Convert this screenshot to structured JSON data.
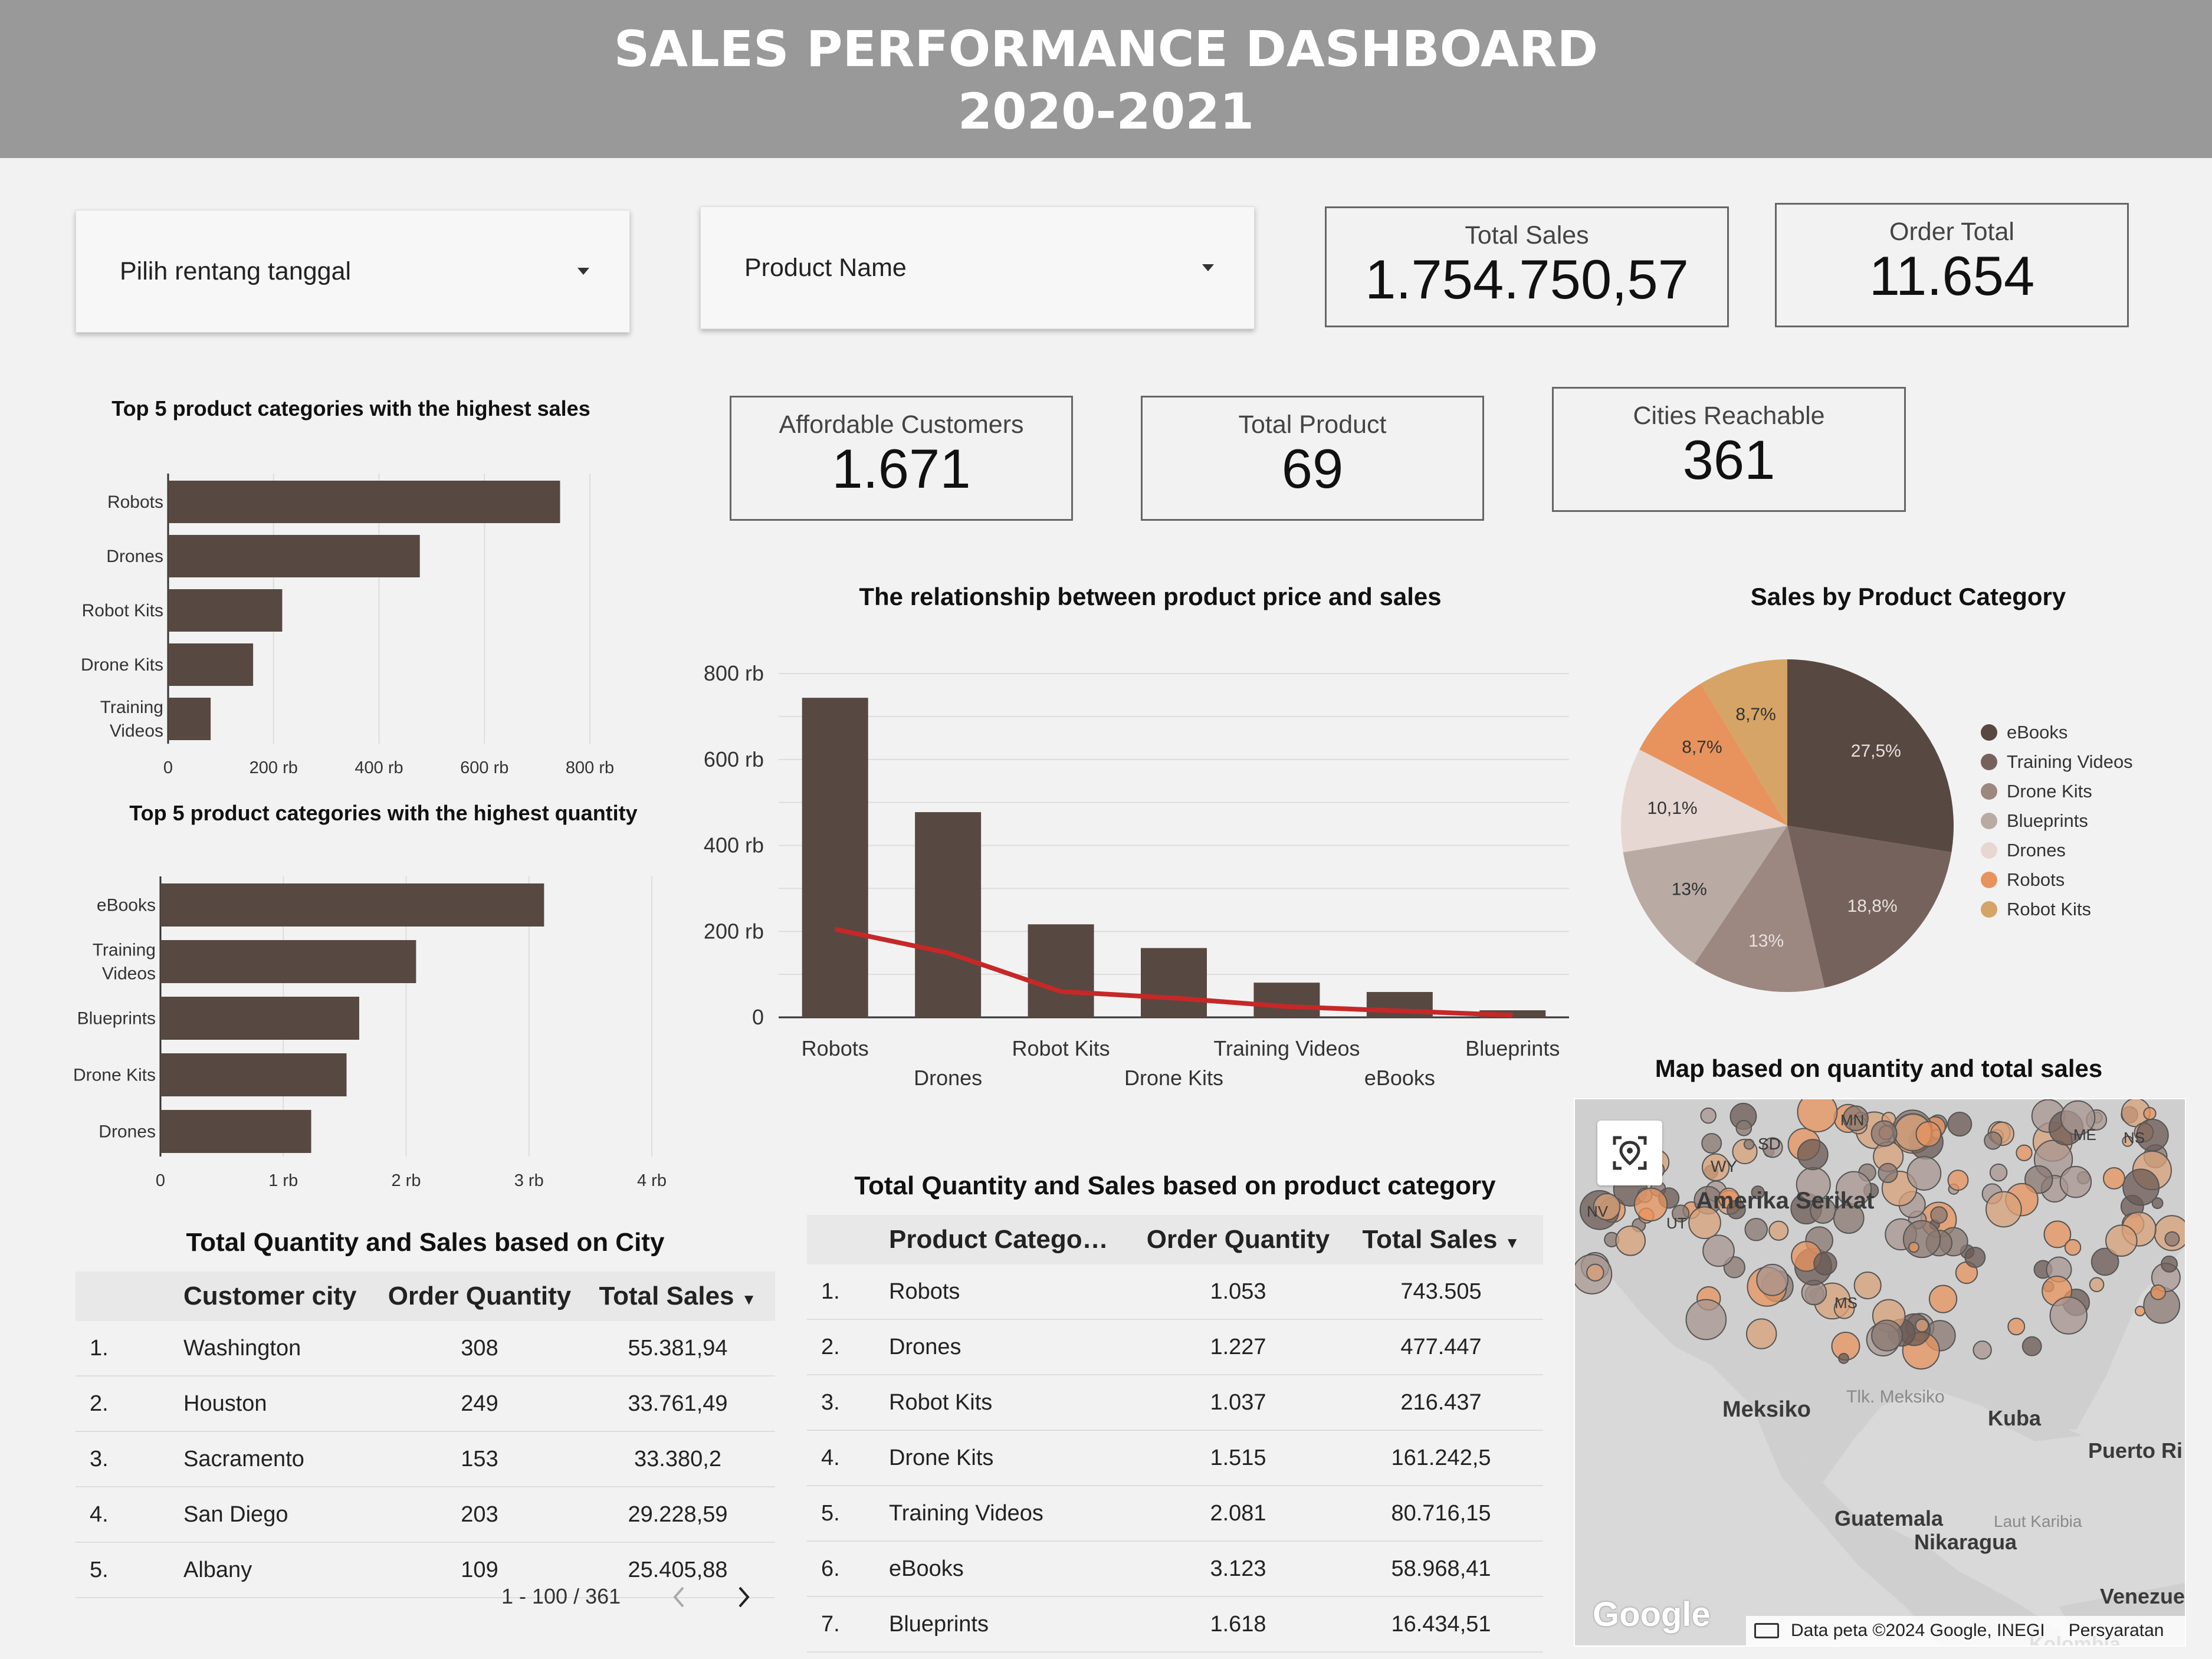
{
  "header": {
    "title_line1": "SALES PERFORMANCE DASHBOARD",
    "title_line2": "2020-2021"
  },
  "filters": {
    "date_range_label": "Pilih rentang tanggal",
    "product_label": "Product Name"
  },
  "kpis": {
    "total_sales": {
      "label": "Total Sales",
      "value": "1.754.750,57"
    },
    "order_total": {
      "label": "Order Total",
      "value": "11.654"
    },
    "affordable_customers": {
      "label": "Affordable Customers",
      "value": "1.671"
    },
    "total_product": {
      "label": "Total Product",
      "value": "69"
    },
    "cities_reachable": {
      "label": "Cities Reachable",
      "value": "361"
    }
  },
  "colors": {
    "bar": "#574842",
    "line": "#c62828",
    "grid": "#dddddd"
  },
  "chart_data": [
    {
      "id": "top-sales",
      "type": "bar",
      "orientation": "horizontal",
      "title": "Top 5 product categories with the highest sales",
      "categories": [
        "Robots",
        "Drones",
        "Robot Kits",
        "Drone Kits",
        "Training Videos"
      ],
      "values": [
        743505,
        477447,
        216437,
        161242.5,
        80716.15
      ],
      "xlim": [
        0,
        800000
      ],
      "xticks": [
        0,
        200000,
        400000,
        600000,
        800000
      ],
      "xtick_labels": [
        "0",
        "200 rb",
        "400 rb",
        "600 rb",
        "800 rb"
      ]
    },
    {
      "id": "top-quantity",
      "type": "bar",
      "orientation": "horizontal",
      "title": "Top 5 product categories with the highest quantity",
      "categories": [
        "eBooks",
        "Training Videos",
        "Blueprints",
        "Drone Kits",
        "Drones"
      ],
      "values": [
        3123,
        2081,
        1618,
        1515,
        1227
      ],
      "xlim": [
        0,
        4000
      ],
      "xticks": [
        0,
        1000,
        2000,
        3000,
        4000
      ],
      "xtick_labels": [
        "0",
        "1 rb",
        "2 rb",
        "3 rb",
        "4 rb"
      ]
    },
    {
      "id": "price-sales",
      "type": "bar",
      "title": "The relationship between product price and sales",
      "categories": [
        "Robots",
        "Drones",
        "Robot Kits",
        "Drone Kits",
        "Training Videos",
        "eBooks",
        "Blueprints"
      ],
      "series": [
        {
          "kind": "bar",
          "values": [
            743505,
            477447,
            216437,
            161242.5,
            80716.15,
            58968.41,
            16434.51
          ]
        },
        {
          "kind": "line",
          "values": [
            205000,
            150000,
            60000,
            45000,
            25000,
            15000,
            5000
          ]
        }
      ],
      "ylim": [
        0,
        800000
      ],
      "yticks": [
        0,
        200000,
        400000,
        600000,
        800000
      ],
      "ytick_labels": [
        "0",
        "200 rb",
        "400 rb",
        "600 rb",
        "800 rb"
      ]
    },
    {
      "id": "category-pie",
      "type": "pie",
      "title": "Sales by Product Category",
      "slices": [
        {
          "label": "eBooks",
          "value": 27.5,
          "text": "27,5%",
          "color": "#574842"
        },
        {
          "label": "Training Videos",
          "value": 18.8,
          "text": "18,8%",
          "color": "#76625c"
        },
        {
          "label": "Drone Kits",
          "value": 13.0,
          "text": "13%",
          "color": "#9c8781"
        },
        {
          "label": "Blueprints",
          "value": 13.0,
          "text": "13%",
          "color": "#b9aaa4"
        },
        {
          "label": "Drones",
          "value": 10.1,
          "text": "10,1%",
          "color": "#e6d7d3"
        },
        {
          "label": "Robots",
          "value": 8.7,
          "text": "8,7%",
          "color": "#e8935d"
        },
        {
          "label": "Robot Kits",
          "value": 8.7,
          "text": "8,7%",
          "color": "#d6a466"
        }
      ],
      "legend": "right"
    }
  ],
  "map": {
    "title": "Map based on quantity and total sales",
    "labels": [
      "WY",
      "SD",
      "MN",
      "NV",
      "UT",
      "Amerika Serikat",
      "MS",
      "Meksiko",
      "Tlk. Meksiko",
      "Kuba",
      "Puerto Ri",
      "Guatemala",
      "Laut Karibia",
      "Nikaragua",
      "Venezue",
      "Kolombia",
      "ME",
      "NS"
    ],
    "brand": "Google",
    "attribution": "Data peta ©2024 Google, INEGI",
    "terms": "Persyaratan"
  },
  "city_table": {
    "title": "Total Quantity and Sales based on City",
    "columns": [
      "",
      "Customer city",
      "Order Quantity",
      "Total Sales"
    ],
    "rows": [
      [
        "1.",
        "Washington",
        "308",
        "55.381,94"
      ],
      [
        "2.",
        "Houston",
        "249",
        "33.761,49"
      ],
      [
        "3.",
        "Sacramento",
        "153",
        "33.380,2"
      ],
      [
        "4.",
        "San Diego",
        "203",
        "29.228,59"
      ],
      [
        "5.",
        "Albany",
        "109",
        "25.405,88"
      ]
    ],
    "pager": "1 - 100 / 361"
  },
  "category_table": {
    "title": "Total Quantity and Sales based on product category",
    "columns": [
      "",
      "Product Catego…",
      "Order Quantity",
      "Total Sales"
    ],
    "rows": [
      [
        "1.",
        "Robots",
        "1.053",
        "743.505"
      ],
      [
        "2.",
        "Drones",
        "1.227",
        "477.447"
      ],
      [
        "3.",
        "Robot Kits",
        "1.037",
        "216.437"
      ],
      [
        "4.",
        "Drone Kits",
        "1.515",
        "161.242,5"
      ],
      [
        "5.",
        "Training Videos",
        "2.081",
        "80.716,15"
      ],
      [
        "6.",
        "eBooks",
        "3.123",
        "58.968,41"
      ],
      [
        "7.",
        "Blueprints",
        "1.618",
        "16.434,51"
      ]
    ]
  }
}
